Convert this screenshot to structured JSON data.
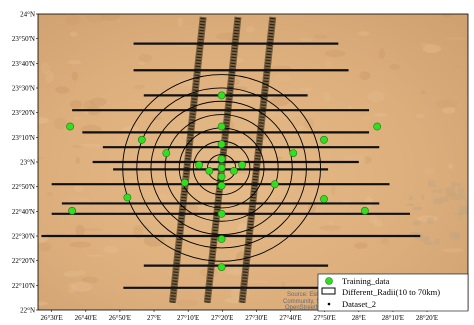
{
  "map": {
    "extent": {
      "lon_min": 26.4333,
      "lon_max": 28.5333,
      "lat_min": 22.0,
      "lat_max": 24.0
    },
    "lat_ticks": [
      {
        "value": 24.0,
        "label": "24°N"
      },
      {
        "value": 23.8333,
        "label": "23°50'N"
      },
      {
        "value": 23.6667,
        "label": "23°40'N"
      },
      {
        "value": 23.5,
        "label": "23°30'N"
      },
      {
        "value": 23.3333,
        "label": "23°20'N"
      },
      {
        "value": 23.1667,
        "label": "23°10'N"
      },
      {
        "value": 23.0,
        "label": "23°N"
      },
      {
        "value": 22.8333,
        "label": "22°50'N"
      },
      {
        "value": 22.6667,
        "label": "22°40'N"
      },
      {
        "value": 22.5,
        "label": "22°30'N"
      },
      {
        "value": 22.3333,
        "label": "22°20'N"
      },
      {
        "value": 22.1667,
        "label": "22°10'N"
      },
      {
        "value": 22.0,
        "label": "22°N"
      }
    ],
    "lon_ticks": [
      {
        "value": 26.5,
        "label": "26°30'E"
      },
      {
        "value": 26.6667,
        "label": "26°40'E"
      },
      {
        "value": 26.8333,
        "label": "26°50'E"
      },
      {
        "value": 27.0,
        "label": "27°E"
      },
      {
        "value": 27.1667,
        "label": "27°10'E"
      },
      {
        "value": 27.3333,
        "label": "27°20'E"
      },
      {
        "value": 27.5,
        "label": "27°30'E"
      },
      {
        "value": 27.6667,
        "label": "27°40'E"
      },
      {
        "value": 27.8333,
        "label": "27°50'E"
      },
      {
        "value": 28.0,
        "label": "28°E"
      },
      {
        "value": 28.1667,
        "label": "28°10'E"
      },
      {
        "value": 28.3333,
        "label": "28°20'E"
      }
    ],
    "center": {
      "lon": 27.33,
      "lat": 22.96
    },
    "radii_km": [
      10,
      20,
      30,
      40,
      50,
      60,
      70
    ],
    "training_points": [
      {
        "lon": 27.33,
        "lat": 22.96
      },
      {
        "lon": 27.27,
        "lat": 22.94
      },
      {
        "lon": 27.39,
        "lat": 22.94
      },
      {
        "lon": 27.22,
        "lat": 22.98
      },
      {
        "lon": 27.43,
        "lat": 22.98
      },
      {
        "lon": 27.33,
        "lat": 22.9
      },
      {
        "lon": 27.33,
        "lat": 23.02
      },
      {
        "lon": 27.33,
        "lat": 22.84
      },
      {
        "lon": 27.15,
        "lat": 22.86
      },
      {
        "lon": 27.59,
        "lat": 22.85
      },
      {
        "lon": 27.06,
        "lat": 23.06
      },
      {
        "lon": 27.33,
        "lat": 23.12
      },
      {
        "lon": 27.68,
        "lat": 23.06
      },
      {
        "lon": 26.87,
        "lat": 22.76
      },
      {
        "lon": 27.83,
        "lat": 22.75
      },
      {
        "lon": 26.94,
        "lat": 23.15
      },
      {
        "lon": 27.33,
        "lat": 23.24
      },
      {
        "lon": 27.83,
        "lat": 23.15
      },
      {
        "lon": 27.33,
        "lat": 22.65
      },
      {
        "lon": 26.6,
        "lat": 22.67
      },
      {
        "lon": 28.03,
        "lat": 22.67
      },
      {
        "lon": 26.59,
        "lat": 23.24
      },
      {
        "lon": 28.09,
        "lat": 23.24
      },
      {
        "lon": 27.33,
        "lat": 23.45
      },
      {
        "lon": 27.33,
        "lat": 22.48
      },
      {
        "lon": 27.33,
        "lat": 22.29
      }
    ],
    "tracks": [
      {
        "lon_bottom": 27.09,
        "lon_top": 27.24,
        "lat_bottom": 22.05,
        "lat_top": 23.98
      },
      {
        "lon_bottom": 27.26,
        "lon_top": 27.41,
        "lat_bottom": 22.05,
        "lat_top": 23.98
      },
      {
        "lon_bottom": 27.43,
        "lon_top": 27.58,
        "lat_bottom": 22.05,
        "lat_top": 23.98
      }
    ],
    "sample_lines": [
      {
        "lat": 23.8,
        "lon_start": 26.9,
        "lon_end": 27.9
      },
      {
        "lat": 23.62,
        "lon_start": 26.9,
        "lon_end": 27.95
      },
      {
        "lat": 23.45,
        "lon_start": 26.95,
        "lon_end": 27.75
      },
      {
        "lat": 23.35,
        "lon_start": 26.6,
        "lon_end": 28.05
      },
      {
        "lat": 23.2,
        "lon_start": 26.65,
        "lon_end": 28.05
      },
      {
        "lat": 23.1,
        "lon_start": 26.75,
        "lon_end": 28.1
      },
      {
        "lat": 23.0,
        "lon_start": 26.7,
        "lon_end": 28.0
      },
      {
        "lat": 22.95,
        "lon_start": 26.8,
        "lon_end": 27.85
      },
      {
        "lat": 22.85,
        "lon_start": 26.5,
        "lon_end": 28.15
      },
      {
        "lat": 22.72,
        "lon_start": 26.55,
        "lon_end": 28.1
      },
      {
        "lat": 22.65,
        "lon_start": 26.5,
        "lon_end": 28.25
      },
      {
        "lat": 22.5,
        "lon_start": 26.45,
        "lon_end": 28.3
      },
      {
        "lat": 22.3,
        "lon_start": 26.95,
        "lon_end": 27.85
      },
      {
        "lat": 22.15,
        "lon_start": 26.85,
        "lon_end": 28.0
      }
    ],
    "colors": {
      "desert": "#dcae7c",
      "desert_dark": "#c4925f",
      "training_fill": "#33dd22",
      "training_stroke": "#1a7a10",
      "circle": "#000000",
      "line": "#111111",
      "track": "#5b4a2e"
    },
    "attribution": [
      "Source: Esri,",
      "Community, Sou",
      "OpenStreetMa"
    ]
  },
  "legend": {
    "training_label": "Training_data",
    "radii_label": "Different_Radii(10 to 70km)",
    "dataset_label": "Dataset_2"
  }
}
